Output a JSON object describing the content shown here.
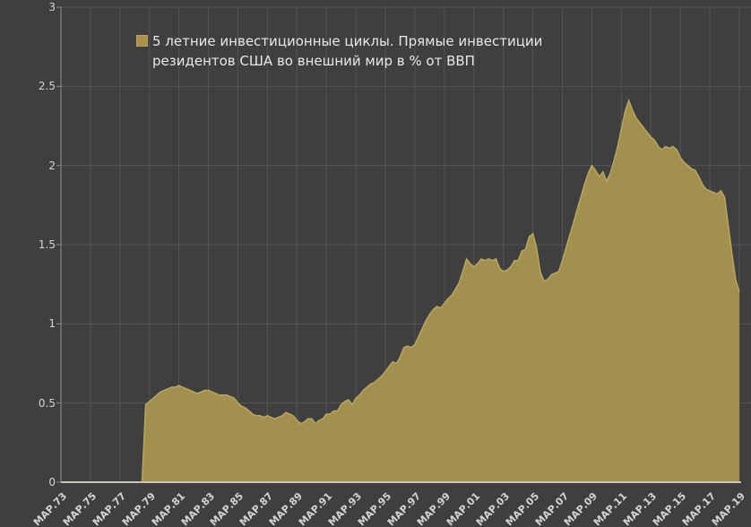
{
  "colors": {
    "background": "#3f3f3f",
    "grid": "#545454",
    "axis_line": "#8c8c8c",
    "baseline": "#c9c5bb",
    "area_fill": "#a2904f",
    "area_line": "#b9a65e",
    "legend_swatch": "#ac9147",
    "axis_label_text": "#d4d4d4",
    "legend_text": "#e8e8e8"
  },
  "legend": {
    "line1": "5 летние инвестиционные циклы. Прямые инвестиции",
    "line2": "резидентов США во внешний мир в %  от ВВП"
  },
  "chart_data": {
    "type": "area",
    "title": "5 летние инвестиционные циклы. Прямые инвестиции резидентов США во внешний мир в % от ВВП",
    "x_start_year": 1973,
    "x_step_years": 0.25,
    "x_tick_every_points": 8,
    "x_tick_labels": [
      "МАР.73",
      "МАР.75",
      "МАР.77",
      "МАР.79",
      "МАР.81",
      "МАР.83",
      "МАР.85",
      "МАР.87",
      "МАР.89",
      "МАР.91",
      "МАР.93",
      "МАР.95",
      "МАР.97",
      "МАР.99",
      "МАР.01",
      "МАР.03",
      "МАР.05",
      "МАР.07",
      "МАР.09",
      "МАР.11",
      "МАР.13",
      "МАР.15",
      "МАР.17",
      "МАР.19"
    ],
    "ylim": [
      0,
      3
    ],
    "y_ticks": [
      0,
      0.5,
      1,
      1.5,
      2,
      2.5,
      3
    ],
    "grid": true,
    "legend_position": "top-left-inside",
    "values": [
      0,
      0,
      0,
      0,
      0,
      0,
      0,
      0,
      0,
      0,
      0,
      0,
      0,
      0,
      0,
      0,
      0,
      0,
      0,
      0,
      0,
      0,
      0,
      0.49,
      0.51,
      0.53,
      0.55,
      0.57,
      0.58,
      0.59,
      0.6,
      0.6,
      0.61,
      0.6,
      0.59,
      0.58,
      0.57,
      0.56,
      0.57,
      0.58,
      0.58,
      0.57,
      0.56,
      0.55,
      0.55,
      0.55,
      0.54,
      0.53,
      0.5,
      0.48,
      0.47,
      0.45,
      0.43,
      0.42,
      0.42,
      0.41,
      0.42,
      0.41,
      0.4,
      0.41,
      0.42,
      0.44,
      0.43,
      0.42,
      0.39,
      0.37,
      0.38,
      0.4,
      0.4,
      0.37,
      0.39,
      0.4,
      0.43,
      0.43,
      0.45,
      0.45,
      0.49,
      0.51,
      0.52,
      0.49,
      0.53,
      0.55,
      0.58,
      0.6,
      0.62,
      0.63,
      0.65,
      0.67,
      0.7,
      0.73,
      0.76,
      0.75,
      0.79,
      0.85,
      0.86,
      0.85,
      0.87,
      0.92,
      0.97,
      1.02,
      1.06,
      1.09,
      1.11,
      1.1,
      1.13,
      1.16,
      1.18,
      1.22,
      1.26,
      1.33,
      1.41,
      1.38,
      1.36,
      1.38,
      1.41,
      1.4,
      1.41,
      1.4,
      1.41,
      1.35,
      1.33,
      1.34,
      1.36,
      1.4,
      1.4,
      1.46,
      1.47,
      1.55,
      1.57,
      1.48,
      1.33,
      1.27,
      1.28,
      1.31,
      1.32,
      1.33,
      1.4,
      1.48,
      1.56,
      1.64,
      1.72,
      1.8,
      1.88,
      1.95,
      2.0,
      1.97,
      1.93,
      1.96,
      1.9,
      1.95,
      2.03,
      2.12,
      2.23,
      2.34,
      2.41,
      2.35,
      2.3,
      2.27,
      2.24,
      2.21,
      2.18,
      2.16,
      2.12,
      2.1,
      2.12,
      2.11,
      2.12,
      2.1,
      2.05,
      2.02,
      2.0,
      1.98,
      1.97,
      1.93,
      1.88,
      1.85,
      1.84,
      1.83,
      1.82,
      1.84,
      1.8,
      1.62,
      1.44,
      1.28,
      1.2
    ]
  }
}
